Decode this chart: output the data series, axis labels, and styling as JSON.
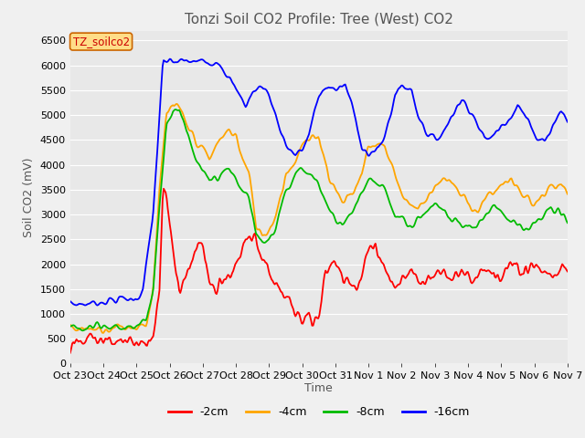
{
  "title": "Tonzi Soil CO2 Profile: Tree (West) CO2",
  "ylabel": "Soil CO2 (mV)",
  "xlabel": "Time",
  "ylim": [
    0,
    6700
  ],
  "yticks": [
    0,
    500,
    1000,
    1500,
    2000,
    2500,
    3000,
    3500,
    4000,
    4500,
    5000,
    5500,
    6000,
    6500
  ],
  "xtick_labels": [
    "Oct 23",
    "Oct 24",
    "Oct 25",
    "Oct 26",
    "Oct 27",
    "Oct 28",
    "Oct 29",
    "Oct 30",
    "Oct 31",
    "Nov 1",
    "Nov 2",
    "Nov 3",
    "Nov 4",
    "Nov 5",
    "Nov 6",
    "Nov 7"
  ],
  "legend_label": "TZ_soilco2",
  "colors": {
    "-2cm": "#ff0000",
    "-4cm": "#ffa500",
    "-8cm": "#00bb00",
    "-16cm": "#0000ff"
  },
  "fig_facecolor": "#f0f0f0",
  "ax_facecolor": "#e8e8e8",
  "grid_color": "#ffffff",
  "title_color": "#555555",
  "label_color": "#555555",
  "title_fontsize": 11,
  "axis_fontsize": 9,
  "tick_fontsize": 8,
  "linewidth": 1.3
}
